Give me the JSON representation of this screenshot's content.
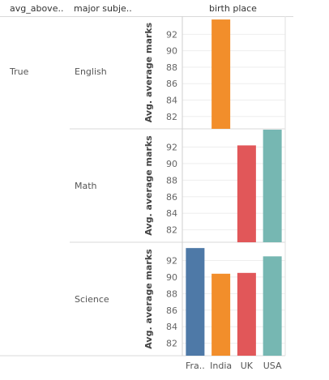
{
  "headers": {
    "col1": "avg_above..",
    "col2": "major subje..",
    "col_title": "birth place"
  },
  "row_group_label": "True",
  "colors": {
    "France": "#4e79a7",
    "India": "#f28e2b",
    "UK": "#e15759",
    "USA": "#76b7b2"
  },
  "chart_data": {
    "type": "bar",
    "ylabel": "Avg. average marks",
    "ylim": [
      80.5,
      94.2
    ],
    "yticks": [
      82,
      84,
      86,
      88,
      90,
      92
    ],
    "grid": true,
    "categories": [
      "Fra..",
      "India",
      "UK",
      "USA"
    ],
    "panels": [
      {
        "name": "English",
        "values": [
          null,
          93.8,
          null,
          null
        ]
      },
      {
        "name": "Math",
        "values": [
          null,
          null,
          92.2,
          94.1
        ]
      },
      {
        "name": "Science",
        "values": [
          93.5,
          90.4,
          90.5,
          92.5
        ]
      }
    ]
  }
}
